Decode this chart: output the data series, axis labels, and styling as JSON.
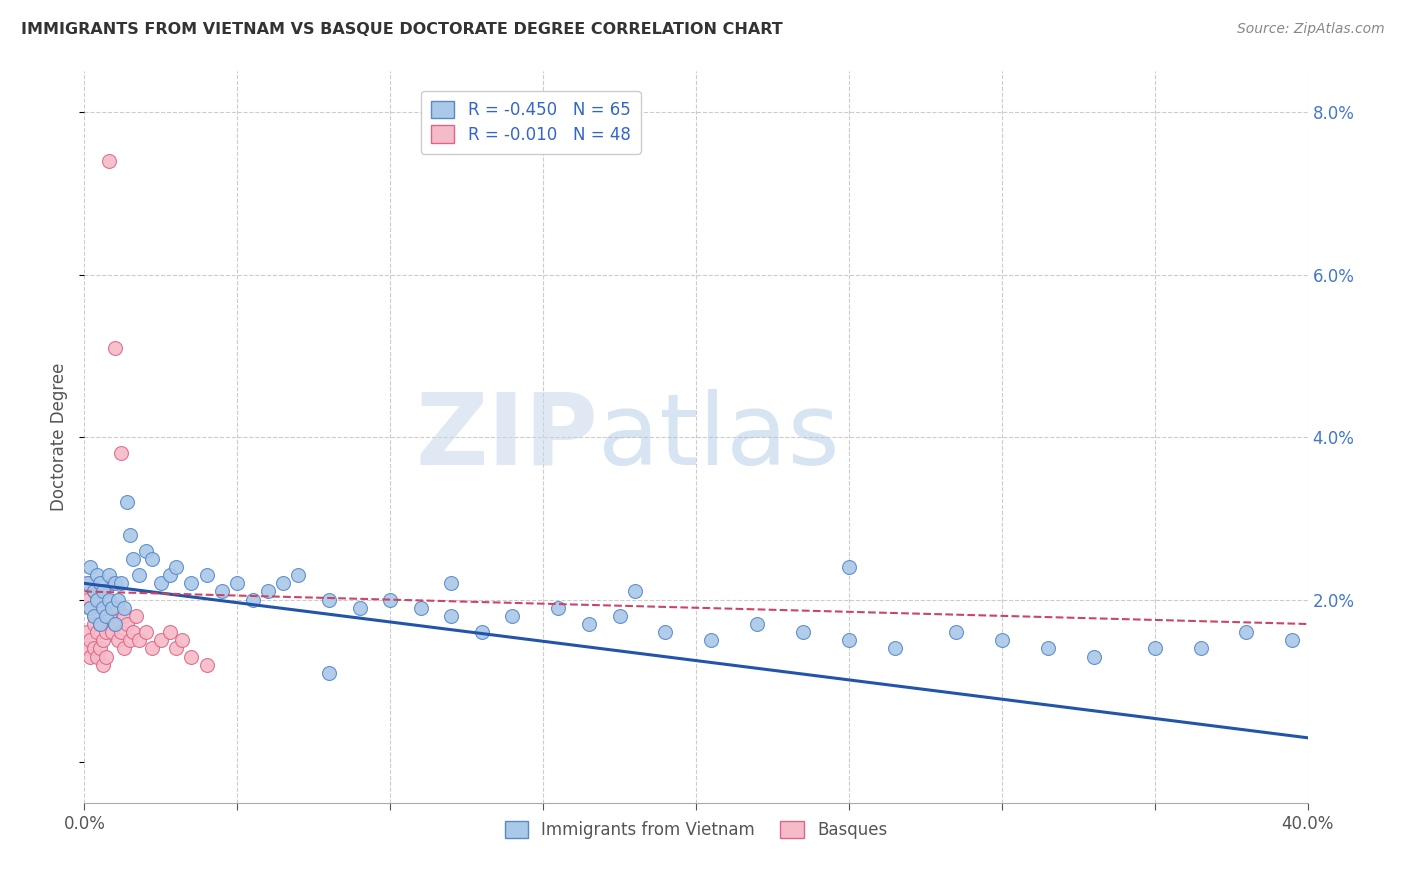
{
  "title": "IMMIGRANTS FROM VIETNAM VS BASQUE DOCTORATE DEGREE CORRELATION CHART",
  "source": "Source: ZipAtlas.com",
  "ylabel": "Doctorate Degree",
  "xlim": [
    0.0,
    0.4
  ],
  "ylim": [
    -0.005,
    0.085
  ],
  "xticks_show": [
    0.0,
    0.4
  ],
  "xticks_grid": [
    0.0,
    0.05,
    0.1,
    0.15,
    0.2,
    0.25,
    0.3,
    0.35,
    0.4
  ],
  "yticks_right": [
    0.0,
    0.02,
    0.04,
    0.06,
    0.08
  ],
  "background_color": "#ffffff",
  "grid_color": "#cccccc",
  "series1_label": "Immigrants from Vietnam",
  "series1_color": "#aac8e8",
  "series1_border": "#5588cc",
  "series1_R": "-0.450",
  "series1_N": "65",
  "series1_line_color": "#2255aa",
  "series2_label": "Basques",
  "series2_color": "#f5bbc8",
  "series2_border": "#dd6688",
  "series2_R": "-0.010",
  "series2_N": "48",
  "series2_line_color": "#cc4466",
  "legend_R1": "R = -0.450",
  "legend_N1": "N = 65",
  "legend_R2": "R = -0.010",
  "legend_N2": "N = 48",
  "watermark_zip_color": "#c8d8e8",
  "watermark_atlas_color": "#a8c8e8",
  "blue_x": [
    0.001,
    0.002,
    0.002,
    0.003,
    0.003,
    0.004,
    0.004,
    0.005,
    0.005,
    0.006,
    0.006,
    0.007,
    0.008,
    0.008,
    0.009,
    0.01,
    0.01,
    0.011,
    0.012,
    0.013,
    0.014,
    0.015,
    0.016,
    0.018,
    0.02,
    0.022,
    0.025,
    0.028,
    0.03,
    0.035,
    0.04,
    0.045,
    0.05,
    0.055,
    0.06,
    0.065,
    0.07,
    0.08,
    0.09,
    0.1,
    0.11,
    0.12,
    0.13,
    0.14,
    0.155,
    0.165,
    0.175,
    0.19,
    0.205,
    0.22,
    0.235,
    0.25,
    0.265,
    0.285,
    0.3,
    0.315,
    0.33,
    0.35,
    0.365,
    0.38,
    0.395,
    0.25,
    0.18,
    0.12,
    0.08
  ],
  "blue_y": [
    0.022,
    0.024,
    0.019,
    0.021,
    0.018,
    0.023,
    0.02,
    0.022,
    0.017,
    0.021,
    0.019,
    0.018,
    0.023,
    0.02,
    0.019,
    0.022,
    0.017,
    0.02,
    0.022,
    0.019,
    0.032,
    0.028,
    0.025,
    0.023,
    0.026,
    0.025,
    0.022,
    0.023,
    0.024,
    0.022,
    0.023,
    0.021,
    0.022,
    0.02,
    0.021,
    0.022,
    0.023,
    0.02,
    0.019,
    0.02,
    0.019,
    0.018,
    0.016,
    0.018,
    0.019,
    0.017,
    0.018,
    0.016,
    0.015,
    0.017,
    0.016,
    0.015,
    0.014,
    0.016,
    0.015,
    0.014,
    0.013,
    0.014,
    0.014,
    0.016,
    0.015,
    0.024,
    0.021,
    0.022,
    0.011
  ],
  "pink_x": [
    0.001,
    0.001,
    0.001,
    0.002,
    0.002,
    0.002,
    0.002,
    0.003,
    0.003,
    0.003,
    0.003,
    0.004,
    0.004,
    0.004,
    0.005,
    0.005,
    0.005,
    0.006,
    0.006,
    0.006,
    0.007,
    0.007,
    0.007,
    0.008,
    0.008,
    0.009,
    0.009,
    0.01,
    0.01,
    0.011,
    0.011,
    0.012,
    0.012,
    0.013,
    0.013,
    0.014,
    0.015,
    0.016,
    0.017,
    0.018,
    0.02,
    0.022,
    0.025,
    0.028,
    0.03,
    0.032,
    0.035,
    0.04
  ],
  "pink_y": [
    0.02,
    0.016,
    0.014,
    0.019,
    0.015,
    0.013,
    0.022,
    0.018,
    0.014,
    0.021,
    0.017,
    0.016,
    0.02,
    0.013,
    0.017,
    0.014,
    0.021,
    0.015,
    0.019,
    0.012,
    0.016,
    0.013,
    0.02,
    0.074,
    0.018,
    0.022,
    0.016,
    0.051,
    0.017,
    0.019,
    0.015,
    0.038,
    0.016,
    0.018,
    0.014,
    0.017,
    0.015,
    0.016,
    0.018,
    0.015,
    0.016,
    0.014,
    0.015,
    0.016,
    0.014,
    0.015,
    0.013,
    0.012
  ],
  "blue_line_x": [
    0.0,
    0.4
  ],
  "blue_line_y": [
    0.022,
    0.003
  ],
  "pink_line_x": [
    0.0,
    0.4
  ],
  "pink_line_y": [
    0.021,
    0.017
  ]
}
